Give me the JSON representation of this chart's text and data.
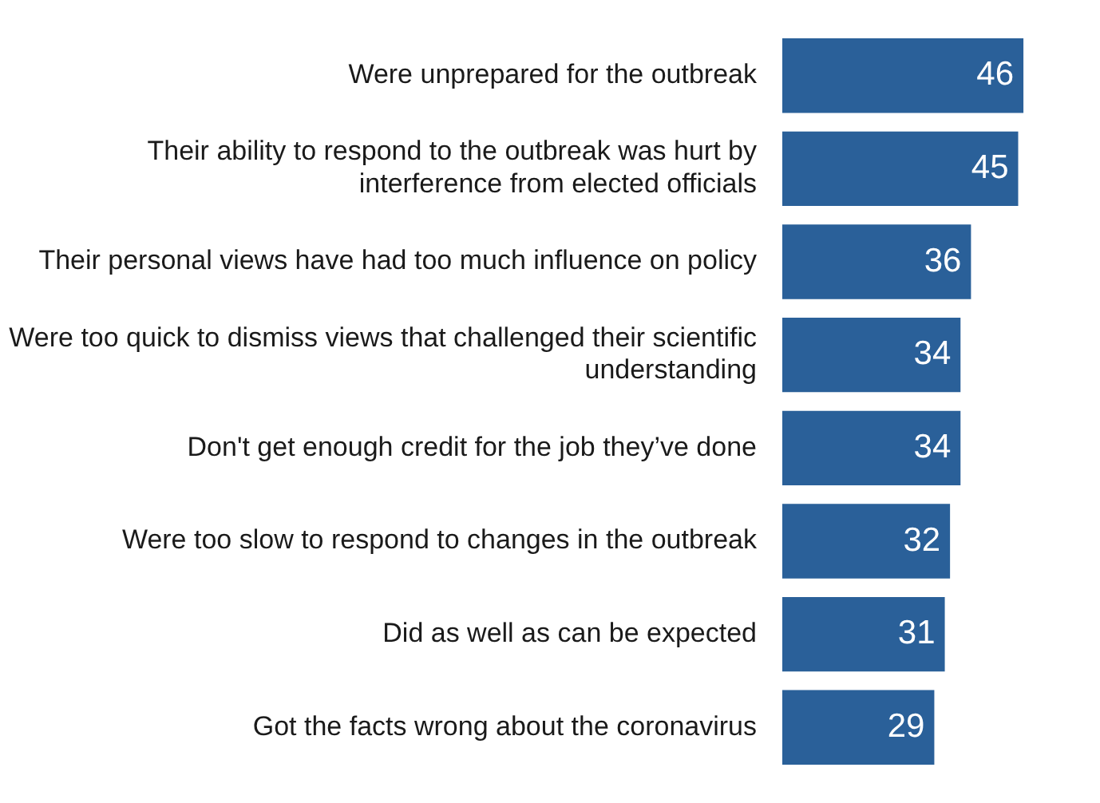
{
  "chart_data": {
    "type": "bar",
    "orientation": "horizontal",
    "data_labels": true,
    "categories": [
      "Were unprepared for the outbreak",
      "Their ability to respond to the outbreak was hurt by interference from elected officials",
      "Their personal views have had too much influence on policy",
      "Were too quick to dismiss views that challenged their scientific understanding",
      "Don't get enough credit for the job they’ve done",
      "Were too slow to respond to changes in the outbreak",
      "Did as well as can be expected",
      "Got the facts wrong about the coronavirus"
    ],
    "values": [
      46,
      45,
      36,
      34,
      34,
      32,
      31,
      29
    ],
    "color": "#2a6099"
  }
}
